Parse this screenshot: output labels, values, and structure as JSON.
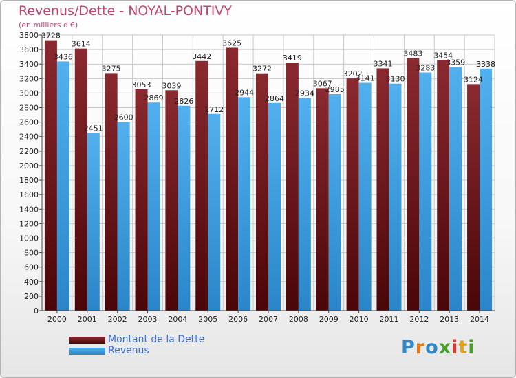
{
  "chart_data": {
    "type": "bar",
    "title": "Revenus/Dette - NOYAL-PONTIVY",
    "subtitle": "(en milliers d'€)",
    "categories": [
      "2000",
      "2001",
      "2002",
      "2003",
      "2004",
      "2005",
      "2006",
      "2007",
      "2008",
      "2009",
      "2010",
      "2011",
      "2012",
      "2013",
      "2014"
    ],
    "series": [
      {
        "name": "Montant de la Dette",
        "color": "#7a1f24",
        "values": [
          3728,
          3614,
          3275,
          3053,
          3039,
          3442,
          3625,
          3272,
          3419,
          3067,
          3202,
          3341,
          3483,
          3454,
          3124
        ]
      },
      {
        "name": "Revenus",
        "color": "#4ba8e6",
        "values": [
          3436,
          2451,
          2600,
          2869,
          2826,
          2712,
          2944,
          2864,
          2934,
          2985,
          3141,
          3130,
          3283,
          3359,
          3338
        ]
      }
    ],
    "ylim": [
      0,
      3800
    ],
    "yticks": [
      0,
      200,
      400,
      600,
      800,
      1000,
      1200,
      1400,
      1600,
      1800,
      2000,
      2200,
      2400,
      2600,
      2800,
      3000,
      3200,
      3400,
      3600,
      3800
    ],
    "grid": true,
    "legend_position": "bottom-left"
  },
  "brand": [
    "P",
    "r",
    "o",
    "x",
    "i",
    "t",
    "i"
  ]
}
